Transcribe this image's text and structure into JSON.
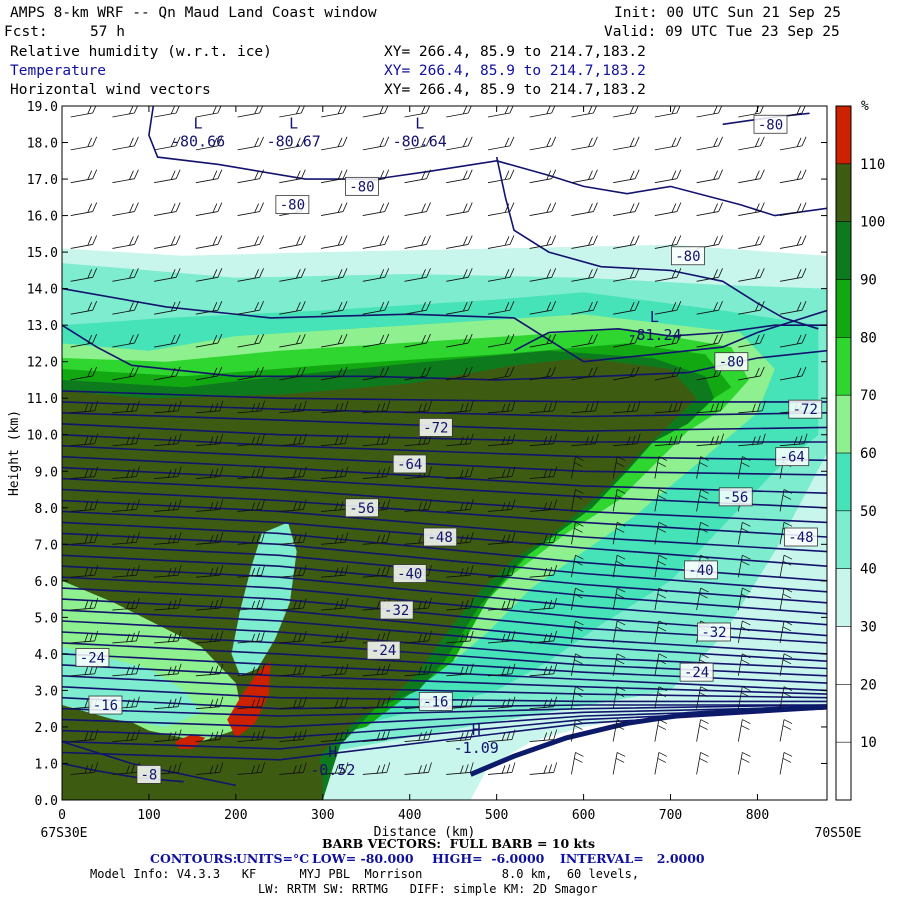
{
  "header": {
    "model_title": "AMPS 8-km WRF -- Qn Maud Land Coast window",
    "init": "Init: 00 UTC Sun 21 Sep 25",
    "fcst_label": "Fcst:",
    "fcst_value": "57 h",
    "valid": "Valid: 09 UTC Tue 23 Sep 25",
    "fields": [
      {
        "name": "Relative humidity (w.r.t. ice)",
        "xy": "XY= 266.4, 85.9 to 214.7,183.2",
        "color": "#000000"
      },
      {
        "name": "Temperature",
        "xy": "XY= 266.4, 85.9 to 214.7,183.2",
        "color": "#1010a0"
      },
      {
        "name": "Horizontal wind vectors",
        "xy": "XY= 266.4, 85.9 to 214.7,183.2",
        "color": "#000000"
      }
    ]
  },
  "chart_data": {
    "type": "heatmap",
    "subtype": "vertical cross-section (shaded RH, temperature contours, wind barbs)",
    "xlabel": "Distance (km)",
    "ylabel": "Height (km)",
    "xlim": [
      0,
      880
    ],
    "ylim": [
      0,
      19
    ],
    "x_ticks": [
      0,
      100,
      200,
      300,
      400,
      500,
      600,
      700,
      800
    ],
    "y_ticks": [
      "0.0",
      "1.0",
      "2.0",
      "3.0",
      "4.0",
      "5.0",
      "6.0",
      "7.0",
      "8.0",
      "9.0",
      "10.0",
      "11.0",
      "12.0",
      "13.0",
      "14.0",
      "15.0",
      "16.0",
      "17.0",
      "18.0",
      "19.0"
    ],
    "x_start_label": "67S30E",
    "x_end_label": "70S50E",
    "colorbar": {
      "unit": "%",
      "labels": [
        "10",
        "20",
        "30",
        "40",
        "50",
        "60",
        "70",
        "80",
        "90",
        "100",
        "110"
      ],
      "bounds": [
        0,
        10,
        20,
        30,
        40,
        50,
        60,
        70,
        80,
        90,
        100,
        110,
        120
      ],
      "colors": [
        "#ffffff",
        "#ffffff",
        "#ffffff",
        "#c8f6ec",
        "#7eeccf",
        "#46e2b8",
        "#8ef08e",
        "#2fd62f",
        "#12a812",
        "#0e7a1e",
        "#3d5c12",
        "#cc2200"
      ]
    },
    "contour_labels": [
      {
        "text": "-80",
        "x": 815,
        "y": 18.5
      },
      {
        "text": "-80",
        "x": 265,
        "y": 16.3
      },
      {
        "text": "-80",
        "x": 345,
        "y": 16.8
      },
      {
        "text": "-80",
        "x": 720,
        "y": 14.9
      },
      {
        "text": "-80",
        "x": 770,
        "y": 12.0
      },
      {
        "text": "-72",
        "x": 855,
        "y": 10.7
      },
      {
        "text": "-72",
        "x": 430,
        "y": 10.2
      },
      {
        "text": "-64",
        "x": 400,
        "y": 9.2
      },
      {
        "text": "-64",
        "x": 840,
        "y": 9.4
      },
      {
        "text": "-56",
        "x": 345,
        "y": 8.0
      },
      {
        "text": "-56",
        "x": 775,
        "y": 8.3
      },
      {
        "text": "-48",
        "x": 435,
        "y": 7.2
      },
      {
        "text": "-48",
        "x": 850,
        "y": 7.2
      },
      {
        "text": "-40",
        "x": 400,
        "y": 6.2
      },
      {
        "text": "-40",
        "x": 735,
        "y": 6.3
      },
      {
        "text": "-32",
        "x": 385,
        "y": 5.2
      },
      {
        "text": "-32",
        "x": 750,
        "y": 4.6
      },
      {
        "text": "-24",
        "x": 370,
        "y": 4.1
      },
      {
        "text": "-24",
        "x": 35,
        "y": 3.9
      },
      {
        "text": "-24",
        "x": 730,
        "y": 3.5
      },
      {
        "text": "-16",
        "x": 430,
        "y": 2.7
      },
      {
        "text": "-16",
        "x": 50,
        "y": 2.6
      },
      {
        "text": "-8",
        "x": 100,
        "y": 0.7
      }
    ],
    "extrema_labels": [
      {
        "mark": "L",
        "value": "-80.66",
        "x": 145,
        "y": 18.0
      },
      {
        "mark": "L",
        "value": "-80.67",
        "x": 255,
        "y": 18.0
      },
      {
        "mark": "L",
        "value": "-80.64",
        "x": 400,
        "y": 18.0
      },
      {
        "mark": "L",
        "value": "-81.24",
        "x": 670,
        "y": 12.7
      },
      {
        "mark": "H",
        "value": "-0.52",
        "x": 300,
        "y": 0.8
      },
      {
        "mark": "H",
        "value": "-1.09",
        "x": 465,
        "y": 1.4
      }
    ]
  },
  "footer": {
    "barb_note": "BARB VECTORS:  FULL BARB = 10 kts",
    "contours_label": "CONTOURS:",
    "units": "UNITS=°C",
    "low": "LOW= -80.000",
    "high": "HIGH=  -6.0000",
    "interval": "INTERVAL=   2.0000",
    "model_info_1": "Model Info: V4.3.3   KF      MYJ PBL  Morrison           8.0 km,  60 levels,",
    "model_info_2": "LW: RRTM SW: RRTMG   DIFF: simple KM: 2D Smagor"
  }
}
